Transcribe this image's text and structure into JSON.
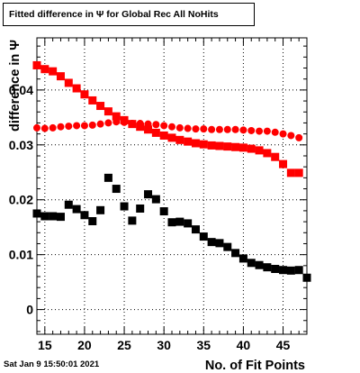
{
  "chart_data": {
    "type": "scatter",
    "title": "Fitted difference in  Ψ  for Global Rec All NoHits",
    "xlabel": "No. of Fit Points",
    "ylabel": "difference in  Ψ",
    "xlim": [
      14,
      48
    ],
    "ylim": [
      -0.0045,
      0.0495
    ],
    "grid": true,
    "legend": "none",
    "x_ticks": [
      15,
      20,
      25,
      30,
      35,
      40,
      45
    ],
    "y_ticks": [
      0,
      0.01,
      0.02,
      0.03,
      0.04
    ],
    "y_tick_labels": [
      "0",
      "0.01",
      "0.02",
      "0.03",
      "0.04"
    ],
    "series": [
      {
        "marker": "square",
        "color": "#ff0000",
        "x": [
          14,
          15,
          16,
          17,
          18,
          19,
          20,
          21,
          22,
          23,
          24,
          25,
          26,
          27,
          28,
          29,
          30,
          31,
          32,
          33,
          34,
          35,
          36,
          37,
          38,
          39,
          40,
          41,
          42,
          43,
          44,
          45,
          46,
          47
        ],
        "y": [
          0.0445,
          0.0438,
          0.0434,
          0.0425,
          0.0413,
          0.0403,
          0.0392,
          0.0381,
          0.0371,
          0.0361,
          0.0352,
          0.0345,
          0.0338,
          0.0333,
          0.0328,
          0.0322,
          0.0317,
          0.0313,
          0.0309,
          0.0306,
          0.0303,
          0.0301,
          0.0299,
          0.0298,
          0.0297,
          0.0296,
          0.0295,
          0.0293,
          0.029,
          0.0285,
          0.0278,
          0.0265,
          0.0249,
          0.0249
        ]
      },
      {
        "marker": "circle",
        "color": "#ff0000",
        "x": [
          14,
          15,
          16,
          17,
          18,
          19,
          20,
          21,
          22,
          23,
          24,
          25,
          26,
          27,
          28,
          29,
          30,
          31,
          32,
          33,
          34,
          35,
          36,
          37,
          38,
          39,
          40,
          41,
          42,
          43,
          44,
          45,
          46,
          47
        ],
        "y": [
          0.0331,
          0.033,
          0.0331,
          0.0333,
          0.0334,
          0.0335,
          0.0335,
          0.0336,
          0.0338,
          0.034,
          0.0342,
          0.0341,
          0.0339,
          0.0339,
          0.0338,
          0.0337,
          0.0335,
          0.0333,
          0.0331,
          0.033,
          0.0329,
          0.0329,
          0.0328,
          0.0328,
          0.0328,
          0.0328,
          0.0327,
          0.0326,
          0.0325,
          0.0325,
          0.0323,
          0.032,
          0.0317,
          0.0313
        ]
      },
      {
        "marker": "square",
        "color": "#000000",
        "x": [
          14,
          15,
          16,
          17,
          18,
          19,
          20,
          21,
          22,
          23,
          24,
          25,
          26,
          27,
          28,
          29,
          30,
          31,
          32,
          33,
          34,
          35,
          36,
          37,
          38,
          39,
          40,
          41,
          42,
          43,
          44,
          45,
          46,
          47,
          48
        ],
        "y": [
          0.0175,
          0.017,
          0.017,
          0.0169,
          0.0191,
          0.0183,
          0.0172,
          0.0161,
          0.0181,
          0.024,
          0.022,
          0.0188,
          0.0162,
          0.0184,
          0.021,
          0.0201,
          0.0179,
          0.0159,
          0.016,
          0.0157,
          0.0146,
          0.0133,
          0.0123,
          0.0121,
          0.0114,
          0.0103,
          0.0093,
          0.0085,
          0.0081,
          0.0077,
          0.0074,
          0.0072,
          0.0071,
          0.0072,
          0.0058
        ]
      }
    ]
  },
  "footer": {
    "timestamp": "Sat Jan  9 15:50:01 2021"
  }
}
